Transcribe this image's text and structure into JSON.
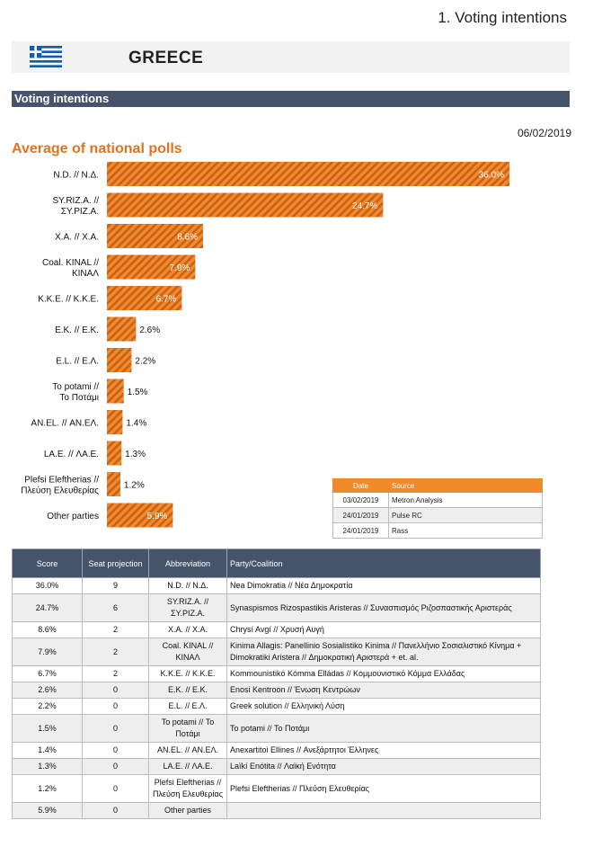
{
  "page_heading": "1. Voting intentions",
  "country": "GREECE",
  "section_title": "Voting intentions",
  "report_date": "06/02/2019",
  "chart_data": {
    "type": "bar",
    "orientation": "horizontal",
    "title": "Average of national polls",
    "categories": [
      "N.D. // Ν.Δ.",
      "SY.RIZ.A. // ΣΥ.ΡΙΖ.Α.",
      "X.A. // Χ.Α.",
      "Coal. KINAL // ΚΙΝΑΛ",
      "K.K.E. // Κ.Κ.Ε.",
      "E.K. // Ε.Κ.",
      "E.L. // Ε.Λ.",
      "To potami // Το Ποτάμι",
      "AN.EL. // ΑΝ.ΕΛ.",
      "LA.E. // ΛΑ.Ε.",
      "Plefsi Eleftherias // Πλεύση Ελευθερίας",
      "Other parties"
    ],
    "values": [
      36.0,
      24.7,
      8.6,
      7.9,
      6.7,
      2.6,
      2.2,
      1.5,
      1.4,
      1.3,
      1.2,
      5.9
    ],
    "value_labels": [
      "36.0%",
      "24.7%",
      "8.6%",
      "7.9%",
      "6.7%",
      "2.6%",
      "2.2%",
      "1.5%",
      "1.4%",
      "1.3%",
      "1.2%",
      "5.9%"
    ],
    "xlim": [
      0,
      36
    ],
    "grid": false,
    "bar_color": "#f08a2b",
    "stripe_color": "#c9601a"
  },
  "sources": {
    "headers": [
      "Date",
      "Source"
    ],
    "rows": [
      {
        "date": "03/02/2019",
        "source": "Metron Analysis"
      },
      {
        "date": "24/01/2019",
        "source": "Pulse RC"
      },
      {
        "date": "24/01/2019",
        "source": "Rass"
      }
    ]
  },
  "results_table": {
    "headers": {
      "score": "Score",
      "seats": "Seat projection",
      "abbr": "Abbreviation",
      "party": "Party/Coalition"
    },
    "rows": [
      {
        "score": "36.0%",
        "seats": "9",
        "abbr": "N.D. // Ν.Δ.",
        "party": "Nea Dimokratia // Νέα Δημοκρατία"
      },
      {
        "score": "24.7%",
        "seats": "6",
        "abbr": "SY.RIZ.A. // ΣΥ.ΡΙΖ.Α.",
        "party": "Synaspismos Rizospastikis Aristeras // Συνασπισμός Ριζοσπαστικής Αριστεράς"
      },
      {
        "score": "8.6%",
        "seats": "2",
        "abbr": "X.A. // Χ.Α.",
        "party": "Chrysí Avgí // Χρυσή Αυγή"
      },
      {
        "score": "7.9%",
        "seats": "2",
        "abbr": "Coal. KINAL // ΚΙΝΑΛ",
        "party": "Kinima Allagis: Panellinio Sosialistiko Kinima // Πανελλήνιο Σοσιαλιστικό Κίνημα + Dimokratiki Aristera // Δημοκρατική Αριστερά + et. al."
      },
      {
        "score": "6.7%",
        "seats": "2",
        "abbr": "K.K.E. // Κ.Κ.Ε.",
        "party": "Kommounistikó Kómma Elládas // Κομμουνιστικό Κόμμα Ελλάδας"
      },
      {
        "score": "2.6%",
        "seats": "0",
        "abbr": "E.K. // Ε.Κ.",
        "party": "Enosi Kentroon // Ένωση Κεντρώων"
      },
      {
        "score": "2.2%",
        "seats": "0",
        "abbr": "E.L. // Ε.Λ.",
        "party": "Greek solution // Ελληνική Λύση"
      },
      {
        "score": "1.5%",
        "seats": "0",
        "abbr": "To potami // Το Ποτάμι",
        "party": "To potami // Το Ποτάμι"
      },
      {
        "score": "1.4%",
        "seats": "0",
        "abbr": "AN.EL. // ΑΝ.ΕΛ.",
        "party": "Anexartitoi Ellines // Ανεξάρτητοι Έλληνες"
      },
      {
        "score": "1.3%",
        "seats": "0",
        "abbr": "LA.E. // ΛΑ.Ε.",
        "party": "Laïkí Enótita // Λαϊκή Ενότητα"
      },
      {
        "score": "1.2%",
        "seats": "0",
        "abbr": "Plefsi Eleftherias // Πλεύση Ελευθερίας",
        "party": "Plefsi Eleftherias // Πλεύση Ελευθερίας"
      },
      {
        "score": "5.9%",
        "seats": "0",
        "abbr": "Other parties",
        "party": ""
      }
    ]
  }
}
